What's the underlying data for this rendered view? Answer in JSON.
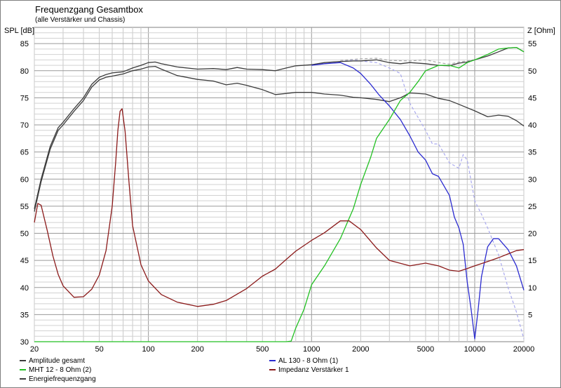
{
  "chart_data": {
    "type": "line",
    "title": "Frequenzgang Gesamtbox",
    "subtitle": "(alle Verstärker und Chassis)",
    "ylabel_left": "SPL [dB]",
    "ylabel_right": "Z [Ohm]",
    "x_scale": "log",
    "xlim": [
      20,
      20000
    ],
    "ylim_left": [
      30,
      88
    ],
    "ylim_right": [
      0,
      58
    ],
    "grid": true,
    "x_ticks": [
      20,
      50,
      100,
      200,
      500,
      1000,
      2000,
      5000,
      10000,
      20000
    ],
    "y_ticks_left": [
      30,
      35,
      40,
      45,
      50,
      55,
      60,
      65,
      70,
      75,
      80,
      85
    ],
    "y_ticks_right": [
      5,
      10,
      15,
      20,
      25,
      30,
      35,
      40,
      45,
      50,
      55
    ],
    "legend_position": "bottom",
    "series": [
      {
        "name": "Amplitude gesamt",
        "color": "#3c3c3c",
        "axis": "left",
        "x": [
          20,
          22,
          25,
          28,
          30,
          35,
          40,
          45,
          50,
          55,
          60,
          70,
          80,
          90,
          100,
          110,
          120,
          150,
          200,
          250,
          300,
          350,
          400,
          500,
          600,
          700,
          800,
          1000,
          1200,
          1500,
          1800,
          2000,
          2500,
          3000,
          3500,
          4000,
          5000,
          6000,
          7000,
          8000,
          9000,
          10000,
          12000,
          14000,
          16000,
          18000,
          20000
        ],
        "y": [
          54.5,
          60,
          66,
          69.5,
          70.5,
          73,
          75,
          77.5,
          78.8,
          79.3,
          79.6,
          79.8,
          80.5,
          81,
          81.5,
          81.6,
          81.3,
          80.7,
          80.3,
          80.4,
          80.2,
          80.6,
          80.3,
          80.2,
          80.0,
          80.5,
          80.9,
          81.1,
          81.5,
          81.7,
          81.8,
          81.8,
          82.0,
          81.5,
          81.3,
          81.5,
          81.3,
          81.0,
          80.9,
          81.4,
          81.6,
          82.0,
          82.7,
          83.5,
          84.2,
          84.3,
          83.5
        ]
      },
      {
        "name": "Energiefrequenzgang",
        "color": "#3c3c3c",
        "axis": "left",
        "x": [
          20,
          22,
          25,
          28,
          30,
          35,
          40,
          45,
          50,
          55,
          60,
          70,
          80,
          90,
          100,
          110,
          120,
          150,
          200,
          250,
          300,
          350,
          400,
          500,
          600,
          700,
          800,
          1000,
          1200,
          1500,
          1800,
          2000,
          2500,
          3000,
          3500,
          4000,
          5000,
          6000,
          7000,
          8000,
          10000,
          12000,
          14000,
          16000,
          18000,
          20000
        ],
        "y": [
          54,
          59.5,
          65.5,
          69,
          70,
          72.5,
          74.5,
          77,
          78.3,
          78.8,
          79,
          79.4,
          80,
          80.3,
          80.7,
          80.8,
          80.3,
          79.1,
          78.4,
          78.1,
          77.4,
          77.7,
          77.3,
          76.5,
          75.6,
          75.8,
          76.0,
          76.0,
          75.7,
          75.5,
          75.1,
          75.0,
          74.7,
          74.3,
          75.0,
          75.9,
          75.7,
          74.9,
          74.5,
          73.8,
          72.6,
          71.5,
          71.8,
          71.6,
          70.8,
          69.8
        ]
      },
      {
        "name": "AL 130 - 8 Ohm (1)",
        "color": "#2b2bd0",
        "axis": "left",
        "x": [
          1000,
          1200,
          1500,
          1800,
          2000,
          2300,
          2600,
          3000,
          3500,
          4000,
          4500,
          5000,
          5500,
          6000,
          7000,
          7500,
          8000,
          8500,
          9000,
          9500,
          10000,
          10500,
          11000,
          12000,
          13000,
          14000,
          16000,
          18000,
          20000
        ],
        "y": [
          81.0,
          81.3,
          81.5,
          80.5,
          79.5,
          77.5,
          75.5,
          73.5,
          71.0,
          68.0,
          65.0,
          63.5,
          61.0,
          60.5,
          57.0,
          53.0,
          51.0,
          48.0,
          41.0,
          36.0,
          30.5,
          36.0,
          42.0,
          47.5,
          49.0,
          49.0,
          47.0,
          44.0,
          39.5
        ]
      },
      {
        "name": "MHT 12 - 8 Ohm (2)",
        "color": "#22c022",
        "axis": "left",
        "x": [
          20,
          500,
          700,
          750,
          800,
          900,
          1000,
          1200,
          1500,
          1800,
          2000,
          2300,
          2500,
          3000,
          3500,
          4000,
          4500,
          5000,
          5500,
          6000,
          7000,
          8000,
          9000,
          10000,
          12000,
          14000,
          16000,
          18000,
          20000
        ],
        "y": [
          30,
          30,
          30,
          30.1,
          32.5,
          36.0,
          40.5,
          44.0,
          49.0,
          54.5,
          59.0,
          64.0,
          67.5,
          71.0,
          74.5,
          76.0,
          78.0,
          80.0,
          80.5,
          81.0,
          81.0,
          80.5,
          81.5,
          82.0,
          83.0,
          84.0,
          84.2,
          84.3,
          83.5
        ]
      },
      {
        "name": "Impedanz Verstärker 1",
        "color": "#8b1a1a",
        "axis": "right",
        "x": [
          20,
          21,
          22,
          24,
          26,
          28,
          30,
          35,
          40,
          45,
          50,
          55,
          60,
          63,
          65,
          67,
          69,
          72,
          76,
          80,
          90,
          100,
          120,
          150,
          200,
          250,
          300,
          400,
          500,
          600,
          700,
          800,
          1000,
          1200,
          1500,
          1700,
          2000,
          2500,
          3000,
          4000,
          5000,
          6000,
          7000,
          8000,
          9000,
          10000,
          12000,
          14000,
          16000,
          18000,
          20000
        ],
        "y": [
          22,
          25.5,
          25.2,
          20.5,
          15.8,
          12.4,
          10.3,
          8.2,
          8.3,
          9.7,
          12.3,
          16.8,
          25,
          33,
          39,
          42.5,
          43,
          38.8,
          29.5,
          21.4,
          14.2,
          11.2,
          8.7,
          7.3,
          6.5,
          6.9,
          7.6,
          9.8,
          12.1,
          13.4,
          15.2,
          16.7,
          18.7,
          20.1,
          22.3,
          22.3,
          20.7,
          17.3,
          15.0,
          14.0,
          14.5,
          14.0,
          13.2,
          13.0,
          13.5,
          14.0,
          14.8,
          15.5,
          16.2,
          16.8,
          17.0
        ]
      }
    ],
    "dashed_overlays": [
      {
        "color": "#a9a9ee",
        "axis": "left",
        "x": [
          1500,
          1800,
          2000,
          2500,
          3000,
          3500,
          4000,
          5000,
          5500,
          6000,
          7000,
          8000,
          8500,
          9000,
          10000,
          11000,
          12000,
          14000,
          16000,
          18000,
          20000
        ],
        "y": [
          81.7,
          82.0,
          81.8,
          81.5,
          80.5,
          79.5,
          74.0,
          69.0,
          66.5,
          66.5,
          63.0,
          62.0,
          64.5,
          63.5,
          56.0,
          53.5,
          51.0,
          46.0,
          40.0,
          35.5,
          30.5
        ]
      },
      {
        "color": "#a9a9a9",
        "axis": "left",
        "x": [
          1500,
          2000,
          2500,
          3000,
          4000,
          5000,
          6000,
          7000,
          8000,
          10000
        ],
        "y": [
          81.9,
          82.2,
          82.3,
          81.9,
          81.8,
          82.0,
          81.5,
          81.2,
          81.6,
          82.0
        ]
      }
    ],
    "legend": [
      {
        "label": "Amplitude gesamt",
        "color": "#3c3c3c"
      },
      {
        "label": "MHT 12 - 8 Ohm (2)",
        "color": "#22c022"
      },
      {
        "label": "Energiefrequenzgang",
        "color": "#3c3c3c"
      },
      {
        "label": "AL 130 - 8 Ohm (1)",
        "color": "#2b2bd0"
      },
      {
        "label": "Impedanz Verstärker 1",
        "color": "#8b1a1a"
      }
    ]
  }
}
